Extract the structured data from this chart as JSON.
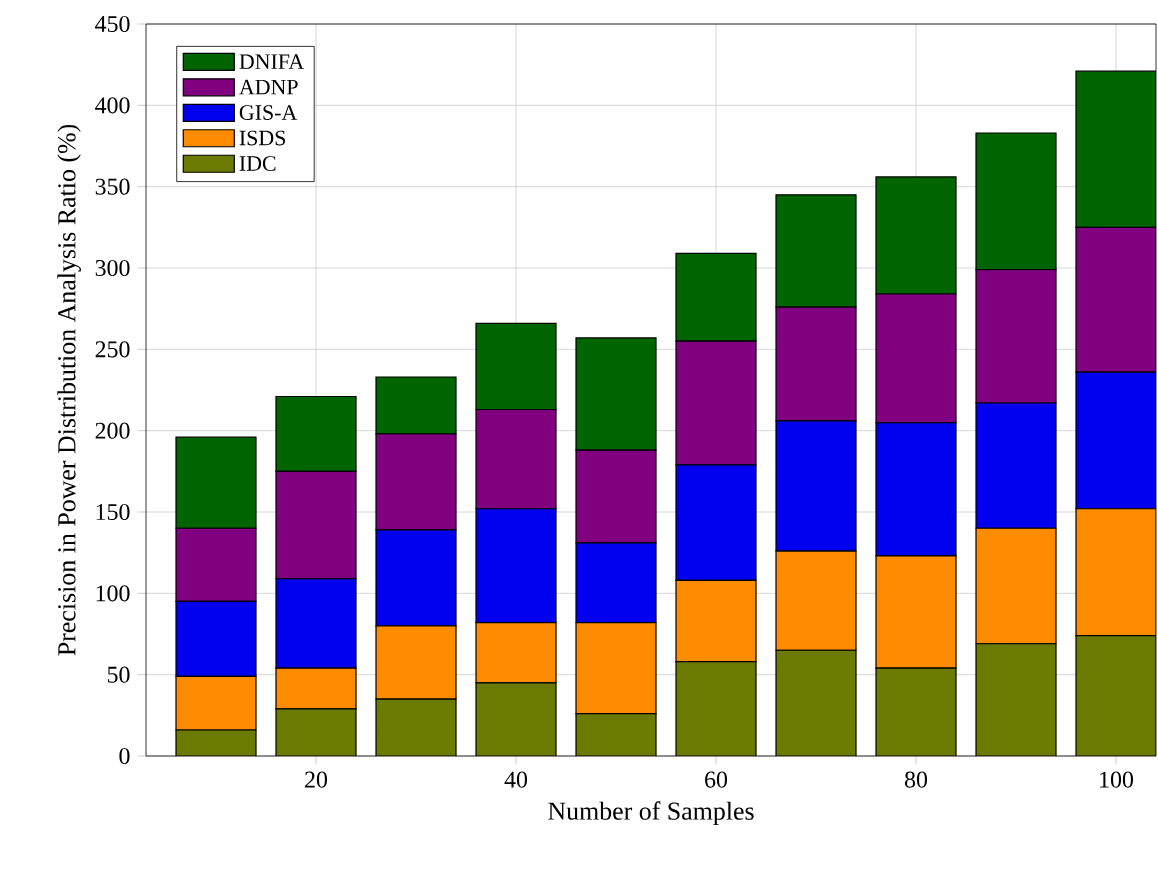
{
  "chart_data": {
    "type": "bar",
    "stacked": true,
    "xlabel": "Number of Samples",
    "ylabel": "Precision in Power Distribution Analysis Ratio (%)",
    "x": [
      10,
      20,
      30,
      40,
      50,
      60,
      70,
      80,
      90,
      100
    ],
    "series": [
      {
        "name": "IDC",
        "color": "#6b7a00",
        "values": [
          16,
          29,
          35,
          45,
          26,
          58,
          65,
          54,
          69,
          74
        ]
      },
      {
        "name": "ISDS",
        "color": "#ff8c00",
        "values": [
          33,
          25,
          45,
          37,
          56,
          50,
          61,
          69,
          71,
          78
        ]
      },
      {
        "name": "GIS-A",
        "color": "#0000ee",
        "values": [
          46,
          55,
          59,
          70,
          49,
          71,
          80,
          82,
          77,
          84
        ]
      },
      {
        "name": "ADNP",
        "color": "#800080",
        "values": [
          45,
          66,
          59,
          61,
          57,
          76,
          70,
          79,
          82,
          89
        ]
      },
      {
        "name": "DNIFA",
        "color": "#006400",
        "values": [
          56,
          46,
          35,
          53,
          69,
          54,
          69,
          72,
          84,
          96
        ]
      }
    ],
    "xlim": [
      3,
      104
    ],
    "xticks": [
      20,
      40,
      60,
      80,
      100
    ],
    "ylim": [
      0,
      450
    ],
    "yticks": [
      0,
      50,
      100,
      150,
      200,
      250,
      300,
      350,
      400,
      450
    ],
    "grid": true,
    "legend": "top left"
  }
}
